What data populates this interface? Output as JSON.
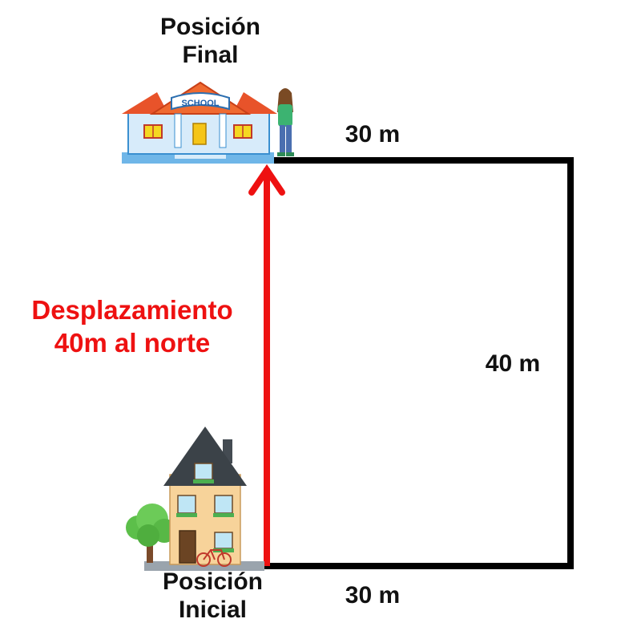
{
  "labels": {
    "final_line1": "Posición",
    "final_line2": "Final",
    "initial_line1": "Posición",
    "initial_line2": "Inicial",
    "top_distance": "30 m",
    "bottom_distance": "30 m",
    "right_distance": "40 m",
    "displacement_line1": "Desplazamiento",
    "displacement_line2": "40m al norte"
  },
  "colors": {
    "path": "#000000",
    "displacement_arrow": "#ee1111",
    "displacement_text": "#ee1111"
  },
  "school_sign": "SCHOOL"
}
